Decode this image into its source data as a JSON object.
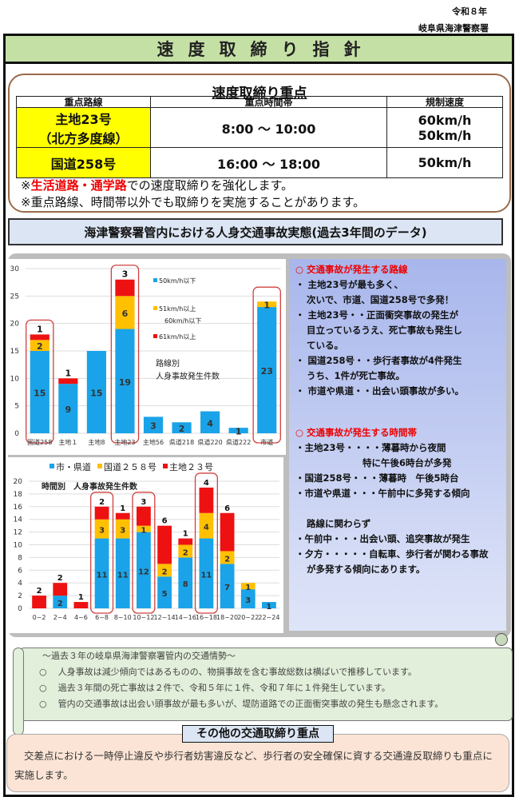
{
  "header": {
    "year": "令和８年",
    "organization": "岐阜県海津警察署",
    "title": "速度取締り指針"
  },
  "focus": {
    "title": "速度取締り重点",
    "columns": [
      "重点路線",
      "重点時間帯",
      "規制速度"
    ],
    "rows": [
      {
        "route_line1": "主地23号",
        "route_line2": "（北方多度線）",
        "time": "8:00 ～ 10:00",
        "speed_line1": "60km/h",
        "speed_line2": "50km/h"
      },
      {
        "route_line1": "国道258号",
        "route_line2": "",
        "time": "16:00 ～ 18:00",
        "speed_line1": "50km/h",
        "speed_line2": ""
      }
    ],
    "note1_prefix": "※",
    "note1_highlight": "生活道路・通学路",
    "note1_suffix": "での速度取締りを強化します。",
    "note2": "※重点路線、時間帯以外でも取締りを実施することがあります。"
  },
  "data_banner": "海津警察署管内における人身交通事故実態(過去3年間のデータ)",
  "colors": {
    "blue": "#1aa3e8",
    "yellow": "#ffc000",
    "red": "#ee1111",
    "highlight": "#d04040"
  },
  "chart_data": [
    {
      "type": "bar",
      "stacked": true,
      "title": "路線別 人身事故発生件数",
      "categories": [
        "国道258",
        "主地１",
        "主地8",
        "主地23",
        "主地56",
        "県道218",
        "県道220",
        "県道222",
        "市道"
      ],
      "series": [
        {
          "name": "50km/h以下",
          "values": [
            15,
            9,
            15,
            19,
            3,
            2,
            4,
            1,
            23
          ]
        },
        {
          "name": "51km/h以上60km/h以下",
          "values": [
            2,
            0,
            0,
            6,
            0,
            0,
            0,
            0,
            1
          ]
        },
        {
          "name": "61km/h以上",
          "values": [
            1,
            1,
            0,
            3,
            0,
            0,
            0,
            0,
            0
          ]
        }
      ],
      "highlighted": [
        "国道258",
        "主地23",
        "市道"
      ],
      "ylim": [
        0,
        30
      ],
      "yticks": [
        0,
        5,
        10,
        15,
        20,
        25,
        30
      ],
      "grid": true,
      "legend_position": "inside-right"
    },
    {
      "type": "bar",
      "stacked": true,
      "title": "時間別 人身事故発生件数",
      "categories": [
        "0~2",
        "2~4",
        "4~6",
        "6~8",
        "8~10",
        "10~12",
        "12~14",
        "14~16",
        "16~18",
        "18~20",
        "20~22",
        "22~24"
      ],
      "series": [
        {
          "name": "市・県道",
          "values": [
            0,
            2,
            0,
            11,
            11,
            12,
            5,
            8,
            11,
            7,
            3,
            1
          ]
        },
        {
          "name": "国道２５８号",
          "values": [
            0,
            0,
            0,
            3,
            3,
            1,
            2,
            2,
            4,
            2,
            1,
            0
          ]
        },
        {
          "name": "主地２３号",
          "values": [
            2,
            2,
            1,
            2,
            1,
            3,
            6,
            1,
            4,
            6,
            0,
            0
          ]
        }
      ],
      "highlighted": [
        "6~8",
        "10~12",
        "16~18"
      ],
      "ylim": [
        0,
        20
      ],
      "yticks": [
        0,
        2,
        4,
        6,
        8,
        10,
        12,
        14,
        16,
        18,
        20
      ],
      "grid": true,
      "legend_position": "top"
    }
  ],
  "info": {
    "routes_heading": "○ 交通事故が発生する路線",
    "routes": [
      "・ 主地23号が最も多く、",
      "次いで、市道、国道258号で多発！",
      "・ 主地23号・・正面衝突事故の発生が",
      "目立っているうえ、死亡事故も発生し",
      "ている。",
      "・ 国道258号・・歩行者事故が4件発生",
      "うち、1件が死亡事故。",
      "・ 市道や県道・・出会い頭事故が多い。"
    ],
    "times_heading": "○ 交通事故が発生する時間帯",
    "times": [
      "・主地23号・・・・薄暮時から夜間",
      "特に午後6時台が多発",
      "・国道258号・・・薄暮時　午後5時台",
      "・市道や県道・・・午前中に多発する傾向",
      "",
      "路線に関わらず",
      "・午前中・・・出会い頭、追突事故が発生",
      "・夕方・・・・・自転車、歩行者が関わる事故",
      "が多発する傾向にあります。"
    ]
  },
  "situation": {
    "heading": "～過去３年の岐阜県海津警察署管内の交通情勢～",
    "items": [
      "人身事故は減少傾向ではあるものの、物損事故を含む事故総数は横ばいで推移しています。",
      "過去３年間の死亡事故は２件で、令和５年に１件、令和７年に１件発生しています。",
      "管内の交通事故は出会い頭事故が最も多いが、堤防道路での正面衝突事故の発生も懸念されます。"
    ]
  },
  "other": {
    "title": "その他の交通取締り重点",
    "text": "交差点における一時停止違反や歩行者妨害違反など、歩行者の安全確保に資する交通違反取締りも重点に実施します。"
  }
}
